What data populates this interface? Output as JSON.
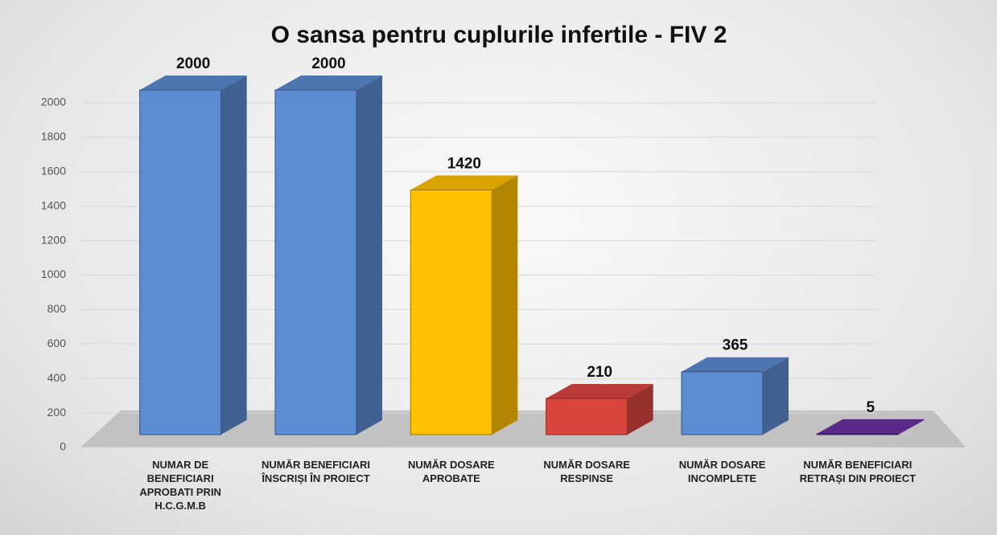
{
  "chart_data": {
    "type": "bar3d",
    "title": "O sansa pentru cuplurile infertile - FIV 2",
    "categories": [
      "NUMAR DE BENEFICIARI APROBATI PRIN H.C.G.M.B",
      "NUMĂR BENEFICIARI ÎNSCRIȘI ÎN PROIECT",
      "NUMĂR DOSARE APROBATE",
      "NUMĂR DOSARE RESPINSE",
      "NUMĂR DOSARE INCOMPLETE",
      "NUMĂR BENEFICIARI RETRAȘI DIN PROIECT"
    ],
    "values": [
      2000,
      2000,
      1420,
      210,
      365,
      5
    ],
    "colors": [
      "#5b8bd0",
      "#5b8bd0",
      "#ffc000",
      "#d9463e",
      "#5b8bd0",
      "#6a2fa0"
    ],
    "ylim": [
      0,
      2000
    ],
    "yticks": [
      0,
      200,
      400,
      600,
      800,
      1000,
      1200,
      1400,
      1600,
      1800,
      2000
    ],
    "grid": true
  }
}
